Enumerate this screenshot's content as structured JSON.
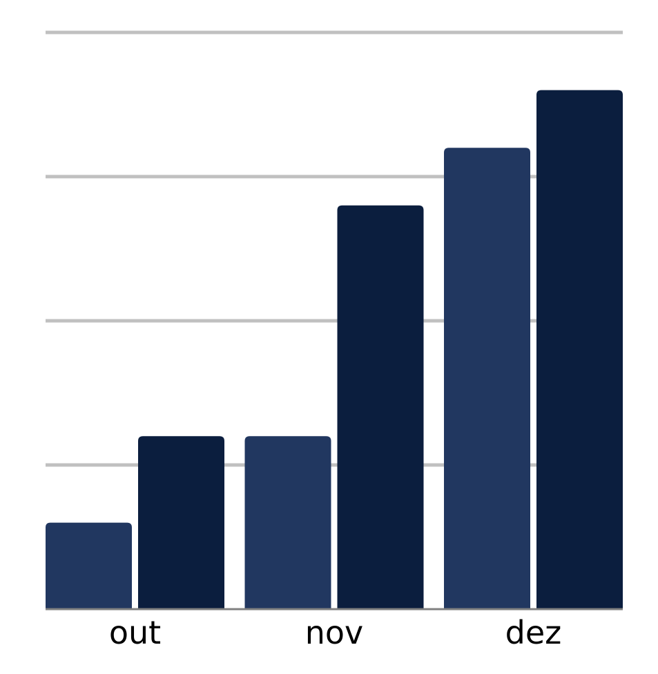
{
  "chart_data": {
    "type": "bar",
    "categories": [
      "out",
      "nov",
      "dez"
    ],
    "series": [
      {
        "values": [
          3,
          6,
          16
        ],
        "color": "#213760"
      },
      {
        "values": [
          6,
          14,
          18
        ],
        "color": "#0b1e3e"
      }
    ],
    "ylim": [
      0,
      20
    ],
    "grid": true,
    "legend": "none",
    "colors": {
      "grid": "#c0c0c0",
      "axis": "#808080",
      "text": "#000000",
      "background": "#ffffff"
    }
  }
}
